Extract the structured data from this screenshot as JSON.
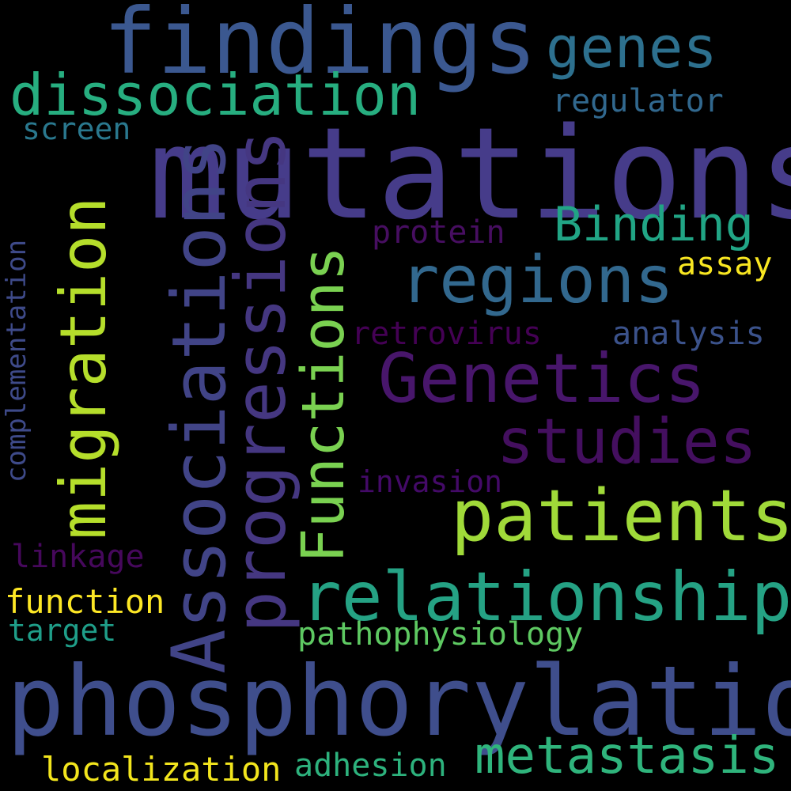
{
  "words": {
    "phosphorylation": {
      "text": "phosphorylation",
      "color": "#3f4e8c"
    },
    "mutations": {
      "text": "mutations",
      "color": "#463c8a"
    },
    "findings": {
      "text": "findings",
      "color": "#3b5890"
    },
    "relationship": {
      "text": "relationship",
      "color": "#25a284"
    },
    "patients": {
      "text": "patients",
      "color": "#a0da39"
    },
    "genetics": {
      "text": "Genetics",
      "color": "#48166b"
    },
    "regions": {
      "text": "regions",
      "color": "#32688e"
    },
    "metastasis": {
      "text": "metastasis",
      "color": "#2fb47c"
    },
    "studies": {
      "text": "studies",
      "color": "#440f5f"
    },
    "dissociation": {
      "text": "dissociation",
      "color": "#27ae80"
    },
    "genes": {
      "text": "genes",
      "color": "#2d708e"
    },
    "binding": {
      "text": "Binding",
      "color": "#21a585"
    },
    "associations": {
      "text": "Associations",
      "color": "#414487"
    },
    "progressions": {
      "text": "progressions",
      "color": "#453781"
    },
    "migration": {
      "text": "migration",
      "color": "#b5de2b"
    },
    "functions": {
      "text": "Functions",
      "color": "#7ad151"
    },
    "localization": {
      "text": "localization",
      "color": "#f2e51d"
    },
    "adhesion": {
      "text": "adhesion",
      "color": "#2db27d"
    },
    "pathophysiology": {
      "text": "pathophysiology",
      "color": "#5ec962"
    },
    "function": {
      "text": "function",
      "color": "#fde725"
    },
    "target": {
      "text": "target",
      "color": "#1f9e89"
    },
    "linkage": {
      "text": "linkage",
      "color": "#46085c"
    },
    "invasion": {
      "text": "invasion",
      "color": "#440a68"
    },
    "retrovirus": {
      "text": "retrovirus",
      "color": "#440154"
    },
    "analysis": {
      "text": "analysis",
      "color": "#3b528b"
    },
    "assay": {
      "text": "assay",
      "color": "#f8e621"
    },
    "protein": {
      "text": "protein",
      "color": "#470e61"
    },
    "regulator": {
      "text": "regulator",
      "color": "#31688e"
    },
    "screen": {
      "text": "screen",
      "color": "#2a788e"
    },
    "complementation": {
      "text": "complementation",
      "color": "#3e4a89"
    }
  }
}
